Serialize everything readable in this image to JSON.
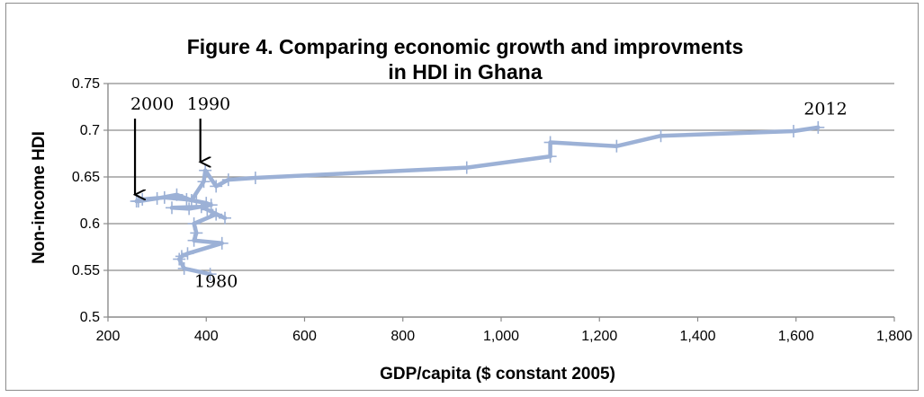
{
  "chart_data": {
    "type": "line",
    "title_line1": "Figure 4. Comparing economic growth and improvments",
    "title_line2": "in HDI in Ghana",
    "xlabel": "GDP/capita ($ constant 2005)",
    "ylabel": "Non-income HDI",
    "xlim": [
      200,
      1800
    ],
    "ylim": [
      0.5,
      0.75
    ],
    "x_ticks": [
      200,
      400,
      600,
      800,
      1000,
      1200,
      1400,
      1600,
      1800
    ],
    "x_tick_labels": [
      "200",
      "400",
      "600",
      "800",
      "1,000",
      "1,200",
      "1,400",
      "1,600",
      "1,800"
    ],
    "y_ticks": [
      0.5,
      0.55,
      0.6,
      0.65,
      0.7,
      0.75
    ],
    "y_tick_labels": [
      "0.5",
      "0.55",
      "0.6",
      "0.65",
      "0.7",
      "0.75"
    ],
    "grid": "horizontal",
    "line_color": "#9cb1d6",
    "series": [
      {
        "x": [
          408,
          355,
          345,
          350,
          362,
          432,
          375,
          380,
          375,
          420,
          438,
          402,
          390,
          330,
          365,
          410,
          400,
          380,
          360,
          315,
          270,
          258,
          262,
          300,
          340,
          370,
          395,
          398,
          420,
          445,
          500,
          930,
          1100,
          1100,
          1235,
          1325,
          1595,
          1645
        ],
        "y": [
          0.546,
          0.552,
          0.562,
          0.565,
          0.568,
          0.579,
          0.582,
          0.59,
          0.6,
          0.61,
          0.606,
          0.615,
          0.618,
          0.617,
          0.616,
          0.62,
          0.622,
          0.624,
          0.626,
          0.628,
          0.626,
          0.624,
          0.624,
          0.627,
          0.631,
          0.625,
          0.645,
          0.657,
          0.64,
          0.647,
          0.649,
          0.66,
          0.672,
          0.687,
          0.683,
          0.694,
          0.699,
          0.703
        ]
      }
    ],
    "annotations": [
      {
        "text": "2000",
        "x": 290,
        "y": 0.722,
        "arrow_to": [
          255,
          0.631
        ]
      },
      {
        "text": "1990",
        "x": 405,
        "y": 0.722,
        "arrow_to": [
          388,
          0.666
        ]
      },
      {
        "text": "2012",
        "x": 1660,
        "y": 0.717
      },
      {
        "text": "1980",
        "x": 420,
        "y": 0.532
      }
    ]
  }
}
